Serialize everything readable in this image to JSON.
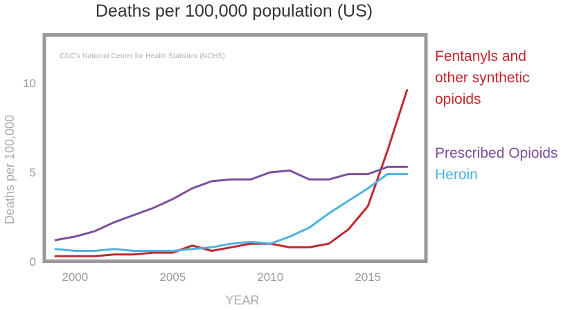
{
  "chart_data": {
    "type": "line",
    "title": "Deaths per 100,000 population (US)",
    "source_note": "CDC's National Center for Health Statistics (NCHS)",
    "xlabel": "YEAR",
    "ylabel": "Deaths per 100,000",
    "xlim": [
      1998.5,
      2017.9
    ],
    "ylim": [
      0,
      12.6
    ],
    "x_ticks": [
      2000,
      2005,
      2010,
      2015
    ],
    "y_ticks": [
      0,
      5,
      10
    ],
    "series": [
      {
        "name": "Fentanyls and other synthetic opioids",
        "legend_lines": [
          "Fentanyls and",
          "other synthetic",
          "opioids"
        ],
        "color": "#c0272d",
        "x": [
          1999,
          2000,
          2001,
          2002,
          2003,
          2004,
          2005,
          2006,
          2007,
          2008,
          2009,
          2010,
          2011,
          2012,
          2013,
          2014,
          2015,
          2016,
          2017
        ],
        "y": [
          0.3,
          0.3,
          0.3,
          0.4,
          0.4,
          0.5,
          0.5,
          0.9,
          0.6,
          0.8,
          1.0,
          1.0,
          0.8,
          0.8,
          1.0,
          1.8,
          3.1,
          6.2,
          9.6
        ]
      },
      {
        "name": "Prescribed Opioids",
        "legend_lines": [
          "Prescribed Opioids"
        ],
        "color": "#7b4f9e",
        "x": [
          1999,
          2000,
          2001,
          2002,
          2003,
          2004,
          2005,
          2006,
          2007,
          2008,
          2009,
          2010,
          2011,
          2012,
          2013,
          2014,
          2015,
          2016,
          2017
        ],
        "y": [
          1.2,
          1.4,
          1.7,
          2.2,
          2.6,
          3.0,
          3.5,
          4.1,
          4.5,
          4.6,
          4.6,
          5.0,
          5.1,
          4.6,
          4.6,
          4.9,
          4.9,
          5.3,
          5.3
        ]
      },
      {
        "name": "Heroin",
        "legend_lines": [
          "Heroin"
        ],
        "color": "#4bb2e0",
        "x": [
          1999,
          2000,
          2001,
          2002,
          2003,
          2004,
          2005,
          2006,
          2007,
          2008,
          2009,
          2010,
          2011,
          2012,
          2013,
          2014,
          2015,
          2016,
          2017
        ],
        "y": [
          0.7,
          0.6,
          0.6,
          0.7,
          0.6,
          0.6,
          0.6,
          0.7,
          0.8,
          1.0,
          1.1,
          1.0,
          1.4,
          1.9,
          2.7,
          3.4,
          4.1,
          4.9,
          4.9
        ]
      }
    ]
  }
}
